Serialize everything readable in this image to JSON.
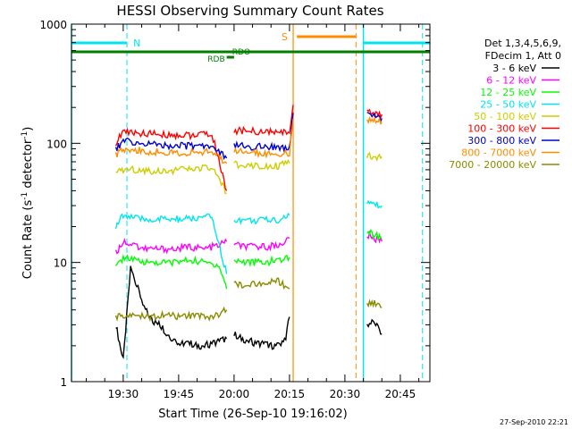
{
  "chart_data": {
    "type": "line",
    "title": "HESSI Observing Summary Count Rates",
    "xlabel": "Start Time (26-Sep-10 19:16:02)",
    "ylabel_main": "Count Rate (s",
    "ylabel_sup1": "-1",
    "ylabel_mid": " detector",
    "ylabel_sup2": "-1",
    "ylabel_end": ")",
    "yscale": "log",
    "xlim": [
      "19:16",
      "20:53"
    ],
    "ylim": [
      1,
      1000
    ],
    "x_ticks": [
      "19:30",
      "19:45",
      "20:00",
      "20:15",
      "20:30",
      "20:45"
    ],
    "y_ticks": [
      "1",
      "10",
      "100",
      "1000"
    ],
    "timestamp": "27-Sep-2010 22:21",
    "legend": {
      "header1": "Det 1,3,4,5,6,9,",
      "header2": "FDecim 1, Att 0",
      "position": "right"
    },
    "annotations": [
      {
        "label": "N",
        "color": "#00e5ee"
      },
      {
        "label": "S",
        "color": "#ff8c00"
      },
      {
        "label": "RDO",
        "color": "#007f00"
      },
      {
        "label": "RDB",
        "color": "#007f00"
      }
    ],
    "series": [
      {
        "name": "3 - 6 keV",
        "color": "#000000",
        "segments": [
          {
            "x": [
              "19:28",
              "19:30",
              "19:32",
              "19:34",
              "19:36",
              "19:38",
              "19:40",
              "19:42",
              "19:44",
              "19:46",
              "19:48",
              "19:50",
              "19:52",
              "19:54",
              "19:56",
              "19:58"
            ],
            "y": [
              3,
              1.5,
              9,
              6,
              4,
              3.2,
              3,
              2.5,
              2.2,
              2.1,
              2.1,
              2.0,
              2.0,
              2.1,
              2.2,
              2.3
            ]
          },
          {
            "x": [
              "20:00",
              "20:02",
              "20:04",
              "20:06",
              "20:08",
              "20:10",
              "20:12",
              "20:14",
              "20:15"
            ],
            "y": [
              2.5,
              2.3,
              2.2,
              2.1,
              2.1,
              2.0,
              2.0,
              2.4,
              3.5
            ]
          },
          {
            "x": [
              "20:36",
              "20:38",
              "20:40"
            ],
            "y": [
              3,
              3.2,
              2.5
            ]
          }
        ]
      },
      {
        "name": "6 - 12 keV",
        "color": "#ff00ff",
        "segments": [
          {
            "x": [
              "19:28",
              "19:30",
              "19:33",
              "19:36",
              "19:40",
              "19:44",
              "19:48",
              "19:52",
              "19:56",
              "19:58"
            ],
            "y": [
              12,
              15,
              14,
              13,
              13,
              13,
              13.5,
              13,
              14,
              15
            ]
          },
          {
            "x": [
              "20:00",
              "20:04",
              "20:08",
              "20:12",
              "20:15"
            ],
            "y": [
              14,
              13.5,
              13.5,
              14,
              16
            ]
          },
          {
            "x": [
              "20:36",
              "20:38",
              "20:40"
            ],
            "y": [
              17,
              16,
              15
            ]
          }
        ]
      },
      {
        "name": "12 - 25 keV",
        "color": "#00ff00",
        "segments": [
          {
            "x": [
              "19:28",
              "19:30",
              "19:33",
              "19:36",
              "19:40",
              "19:44",
              "19:48",
              "19:52",
              "19:56",
              "19:58"
            ],
            "y": [
              9,
              11,
              10.5,
              10,
              10,
              10,
              10.5,
              10,
              9.5,
              6
            ]
          },
          {
            "x": [
              "20:00",
              "20:04",
              "20:08",
              "20:12",
              "20:15"
            ],
            "y": [
              10.5,
              10,
              10,
              10.5,
              11
            ]
          },
          {
            "x": [
              "20:36",
              "20:38",
              "20:40"
            ],
            "y": [
              18,
              17,
              16
            ]
          }
        ]
      },
      {
        "name": "25 - 50 keV",
        "color": "#00e5ee",
        "segments": [
          {
            "x": [
              "19:28",
              "19:30",
              "19:34",
              "19:38",
              "19:42",
              "19:46",
              "19:50",
              "19:54",
              "19:58"
            ],
            "y": [
              20,
              25,
              23,
              23,
              23,
              23,
              23.5,
              24,
              8
            ]
          },
          {
            "x": [
              "20:00",
              "20:04",
              "20:08",
              "20:12",
              "20:15"
            ],
            "y": [
              23,
              22.5,
              22.5,
              23,
              25
            ]
          },
          {
            "x": [
              "20:36",
              "20:38",
              "20:40"
            ],
            "y": [
              32,
              31,
              30
            ]
          }
        ]
      },
      {
        "name": "50 - 100 keV",
        "color": "#cdcd00",
        "segments": [
          {
            "x": [
              "19:28",
              "19:30",
              "19:34",
              "19:38",
              "19:42",
              "19:46",
              "19:50",
              "19:54",
              "19:58"
            ],
            "y": [
              55,
              60,
              60,
              59,
              59,
              60,
              61,
              62,
              38
            ]
          },
          {
            "x": [
              "20:00",
              "20:04",
              "20:08",
              "20:12",
              "20:15"
            ],
            "y": [
              66,
              66,
              65,
              65,
              68
            ]
          },
          {
            "x": [
              "20:36",
              "20:38",
              "20:40"
            ],
            "y": [
              80,
              78,
              77
            ]
          }
        ]
      },
      {
        "name": "100 - 300 keV",
        "color": "#ff0000",
        "segments": [
          {
            "x": [
              "19:28",
              "19:30",
              "19:34",
              "19:38",
              "19:42",
              "19:46",
              "19:50",
              "19:54",
              "19:58"
            ],
            "y": [
              100,
              125,
              122,
              120,
              118,
              117,
              117,
              120,
              40
            ]
          },
          {
            "x": [
              "20:00",
              "20:04",
              "20:08",
              "20:12",
              "20:15",
              "20:16"
            ],
            "y": [
              128,
              126,
              125,
              123,
              125,
              210
            ]
          },
          {
            "x": [
              "20:36",
              "20:38",
              "20:40"
            ],
            "y": [
              190,
              180,
              175
            ]
          }
        ]
      },
      {
        "name": "300 - 800 keV",
        "color": "#0000cd",
        "segments": [
          {
            "x": [
              "19:28",
              "19:30",
              "19:34",
              "19:38",
              "19:42",
              "19:46",
              "19:50",
              "19:54",
              "19:58"
            ],
            "y": [
              90,
              105,
              100,
              98,
              96,
              95,
              95,
              97,
              75
            ]
          },
          {
            "x": [
              "20:00",
              "20:04",
              "20:08",
              "20:12",
              "20:15",
              "20:16"
            ],
            "y": [
              95,
              94,
              93,
              92,
              93,
              180
            ]
          },
          {
            "x": [
              "20:36",
              "20:38",
              "20:40"
            ],
            "y": [
              175,
              168,
              162
            ]
          }
        ]
      },
      {
        "name": "800 - 7000 keV",
        "color": "#ff8c00",
        "segments": [
          {
            "x": [
              "19:28",
              "19:30",
              "19:34",
              "19:38",
              "19:42",
              "19:46",
              "19:50",
              "19:54",
              "19:58"
            ],
            "y": [
              80,
              90,
              87,
              85,
              84,
              83,
              83,
              85,
              68
            ]
          },
          {
            "x": [
              "20:00",
              "20:04",
              "20:08",
              "20:12",
              "20:15",
              "20:16"
            ],
            "y": [
              85,
              84,
              83,
              82,
              83,
              160
            ]
          },
          {
            "x": [
              "20:36",
              "20:38",
              "20:40"
            ],
            "y": [
              160,
              155,
              150
            ]
          }
        ]
      },
      {
        "name": "7000 - 20000 keV",
        "color": "#8b8b00",
        "segments": [
          {
            "x": [
              "19:28",
              "19:30",
              "19:34",
              "19:38",
              "19:42",
              "19:46",
              "19:50",
              "19:54",
              "19:58"
            ],
            "y": [
              3.5,
              3.5,
              3.6,
              3.5,
              3.6,
              3.5,
              3.6,
              3.5,
              4
            ]
          },
          {
            "x": [
              "20:00",
              "20:04",
              "20:08",
              "20:12",
              "20:15"
            ],
            "y": [
              6.5,
              6.5,
              6.8,
              7,
              6
            ]
          },
          {
            "x": [
              "20:36",
              "20:38",
              "20:40"
            ],
            "y": [
              4.5,
              4.5,
              4.2
            ]
          }
        ]
      }
    ]
  }
}
